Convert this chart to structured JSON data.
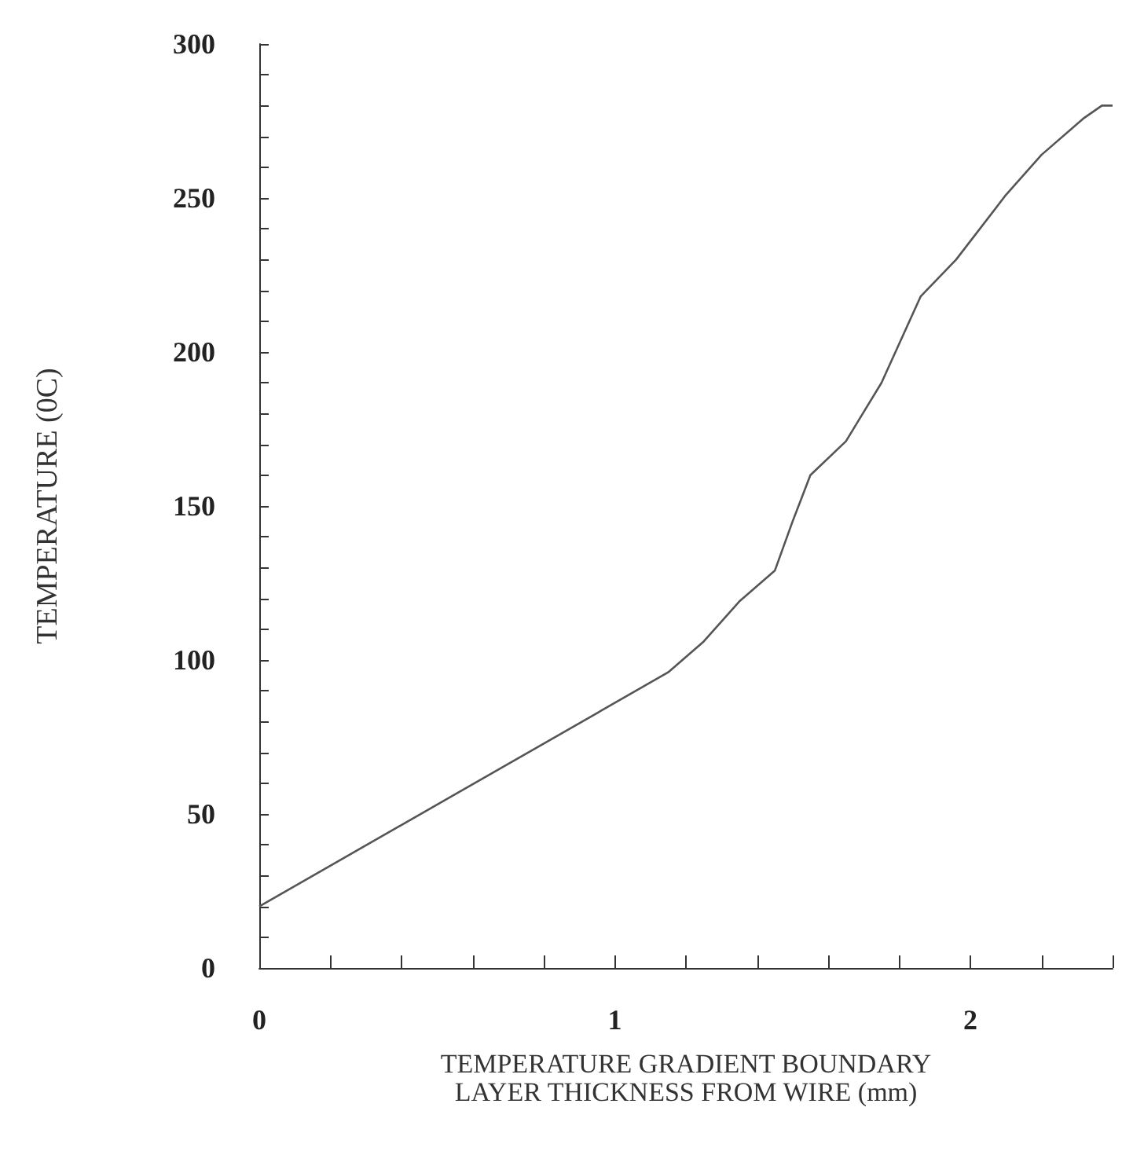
{
  "chart_data": {
    "type": "line",
    "xlabel": "TEMPERATURE GRADIENT BOUNDARY\nLAYER THICKNESS FROM WIRE (mm)",
    "ylabel": "TEMPERATURE (0C)",
    "x": [
      0,
      1.15,
      1.25,
      1.35,
      1.45,
      1.5,
      1.55,
      1.65,
      1.75,
      1.86,
      1.96,
      2.1,
      2.2,
      2.32,
      2.37,
      2.4
    ],
    "series": [
      {
        "color": "#555555",
        "values": [
          20,
          96,
          106,
          119,
          129,
          145,
          160,
          171,
          190,
          218,
          230,
          251,
          264,
          276,
          280,
          280
        ]
      }
    ],
    "xlim": [
      0,
      2.4
    ],
    "xticks": [
      0,
      {
        "value": 0.2,
        "label": null
      },
      {
        "value": 0.4,
        "label": null
      },
      {
        "value": 0.6,
        "label": null
      },
      {
        "value": 0.8,
        "label": null
      },
      1,
      {
        "value": 1.2,
        "label": null
      },
      {
        "value": 1.4,
        "label": null
      },
      {
        "value": 1.6,
        "label": null
      },
      {
        "value": 1.8,
        "label": null
      },
      2,
      {
        "value": 2.2,
        "label": null
      },
      {
        "value": 2.4,
        "label": null
      }
    ],
    "ylim": [
      0,
      300
    ],
    "yticks": [
      0,
      {
        "value": 10,
        "label": null
      },
      {
        "value": 20,
        "label": null
      },
      {
        "value": 30,
        "label": null
      },
      {
        "value": 40,
        "label": null
      },
      50,
      {
        "value": 60,
        "label": null
      },
      {
        "value": 70,
        "label": null
      },
      {
        "value": 80,
        "label": null
      },
      {
        "value": 90,
        "label": null
      },
      100,
      {
        "value": 110,
        "label": null
      },
      {
        "value": 120,
        "label": null
      },
      {
        "value": 130,
        "label": null
      },
      {
        "value": 140,
        "label": null
      },
      150,
      {
        "value": 160,
        "label": null
      },
      {
        "value": 170,
        "label": null
      },
      {
        "value": 180,
        "label": null
      },
      {
        "value": 190,
        "label": null
      },
      200,
      {
        "value": 210,
        "label": null
      },
      {
        "value": 220,
        "label": null
      },
      {
        "value": 230,
        "label": null
      },
      {
        "value": 240,
        "label": null
      },
      250,
      {
        "value": 260,
        "label": null
      },
      {
        "value": 270,
        "label": null
      },
      {
        "value": 280,
        "label": null
      },
      {
        "value": 290,
        "label": null
      },
      300
    ],
    "grid": false,
    "marker": "none",
    "line_style": "solid"
  }
}
